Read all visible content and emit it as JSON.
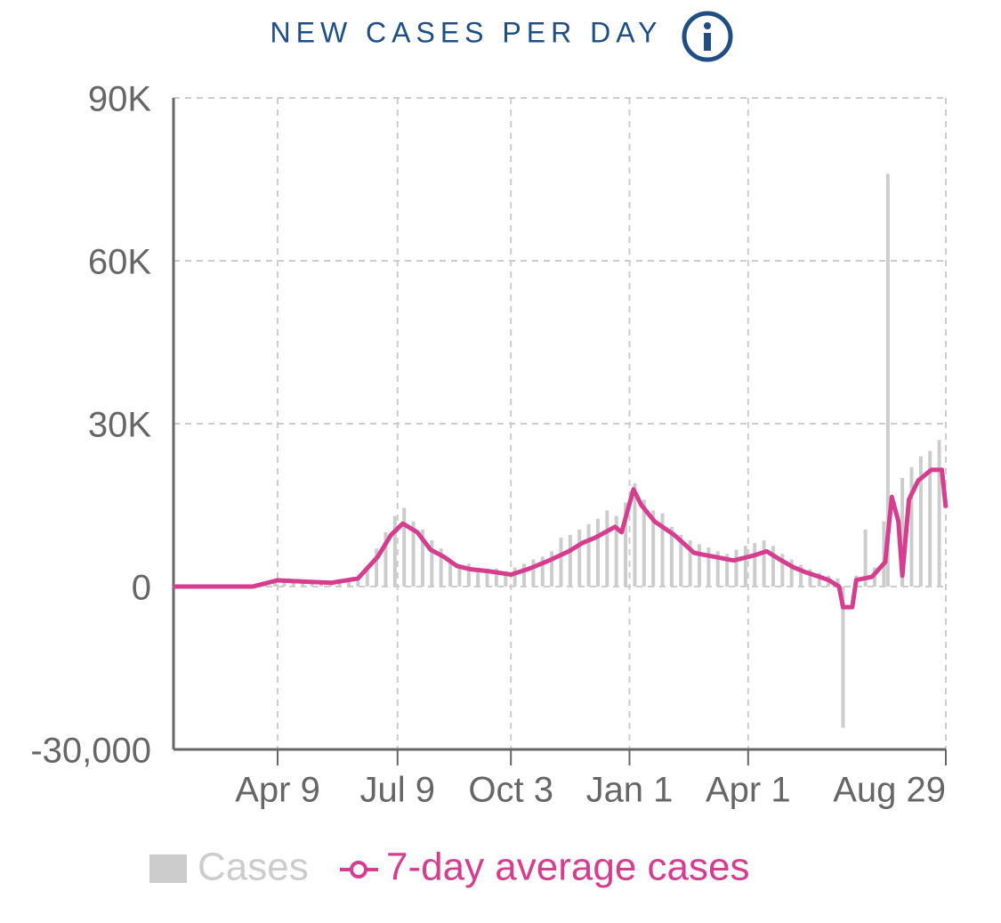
{
  "chart_data": {
    "type": "bar-line",
    "title": "NEW CASES PER DAY",
    "xlim": [
      0,
      586
    ],
    "xticks": [
      {
        "value": 79,
        "label": "Apr 9"
      },
      {
        "value": 170,
        "label": "Jul 9"
      },
      {
        "value": 256,
        "label": "Oct 3"
      },
      {
        "value": 346,
        "label": "Jan 1"
      },
      {
        "value": 436,
        "label": "Apr 1"
      },
      {
        "value": 586,
        "label": "Aug 29"
      }
    ],
    "ylim": [
      -30000,
      90000
    ],
    "yticks": [
      {
        "value": -30000,
        "label": "-30,000"
      },
      0,
      {
        "value": 30000,
        "label": "30K"
      },
      {
        "value": 60000,
        "label": "60K"
      },
      {
        "value": 90000,
        "label": "90K"
      }
    ],
    "grid": true,
    "series": [
      {
        "name": "Cases",
        "kind": "bar",
        "color": "#cccccc",
        "x": [
          0,
          7,
          14,
          21,
          28,
          35,
          42,
          49,
          56,
          63,
          70,
          77,
          84,
          91,
          98,
          105,
          112,
          119,
          126,
          133,
          140,
          147,
          154,
          161,
          168,
          175,
          182,
          189,
          196,
          203,
          210,
          217,
          224,
          231,
          238,
          245,
          252,
          259,
          266,
          273,
          280,
          287,
          294,
          301,
          308,
          315,
          322,
          329,
          336,
          343,
          350,
          357,
          364,
          371,
          378,
          385,
          392,
          399,
          406,
          413,
          420,
          427,
          434,
          441,
          448,
          455,
          462,
          469,
          476,
          483,
          490,
          497,
          504,
          508,
          518,
          525,
          532,
          539,
          542,
          553,
          560,
          567,
          574,
          581
        ],
        "values": [
          0,
          0,
          0,
          0,
          0,
          0,
          0,
          0,
          100,
          300,
          800,
          1300,
          1200,
          1000,
          900,
          800,
          700,
          800,
          900,
          1000,
          1600,
          3500,
          7000,
          10000,
          13000,
          14500,
          12000,
          10500,
          8500,
          7000,
          5000,
          4000,
          4200,
          3500,
          3200,
          3300,
          2800,
          3500,
          4200,
          5000,
          5500,
          6500,
          9000,
          9500,
          10500,
          11500,
          12500,
          14000,
          13000,
          15500,
          19000,
          16000,
          14000,
          13500,
          11000,
          9500,
          8500,
          7800,
          7200,
          6500,
          6000,
          6800,
          7500,
          8000,
          8500,
          7500,
          6000,
          5000,
          4000,
          3200,
          2500,
          2000,
          1500,
          -26000,
          2000,
          10500,
          3500,
          12000,
          76000,
          20000,
          22000,
          24000,
          25000,
          27000
        ]
      },
      {
        "name": "7-day average cases",
        "kind": "line",
        "color": "#d63d8f",
        "x": [
          0,
          60,
          65,
          79,
          100,
          120,
          140,
          155,
          165,
          174,
          185,
          195,
          205,
          215,
          225,
          240,
          256,
          270,
          285,
          300,
          310,
          320,
          335,
          340,
          349,
          355,
          365,
          380,
          395,
          410,
          425,
          440,
          450,
          460,
          470,
          480,
          490,
          497,
          505,
          508,
          515,
          518,
          530,
          540,
          545,
          550,
          553,
          558,
          565,
          575,
          583,
          586
        ],
        "values": [
          0,
          0,
          300,
          1150,
          900,
          700,
          1500,
          5500,
          9500,
          11600,
          10000,
          6800,
          5500,
          3800,
          3200,
          2800,
          2200,
          3300,
          4800,
          6500,
          8000,
          9000,
          11000,
          10000,
          17900,
          15000,
          12000,
          9500,
          6200,
          5500,
          4800,
          5700,
          6500,
          5000,
          3600,
          2600,
          1800,
          1200,
          0,
          -3800,
          -3800,
          1200,
          1800,
          4500,
          16500,
          12000,
          2000,
          16000,
          19500,
          21500,
          21500,
          14500
        ]
      }
    ]
  }
}
